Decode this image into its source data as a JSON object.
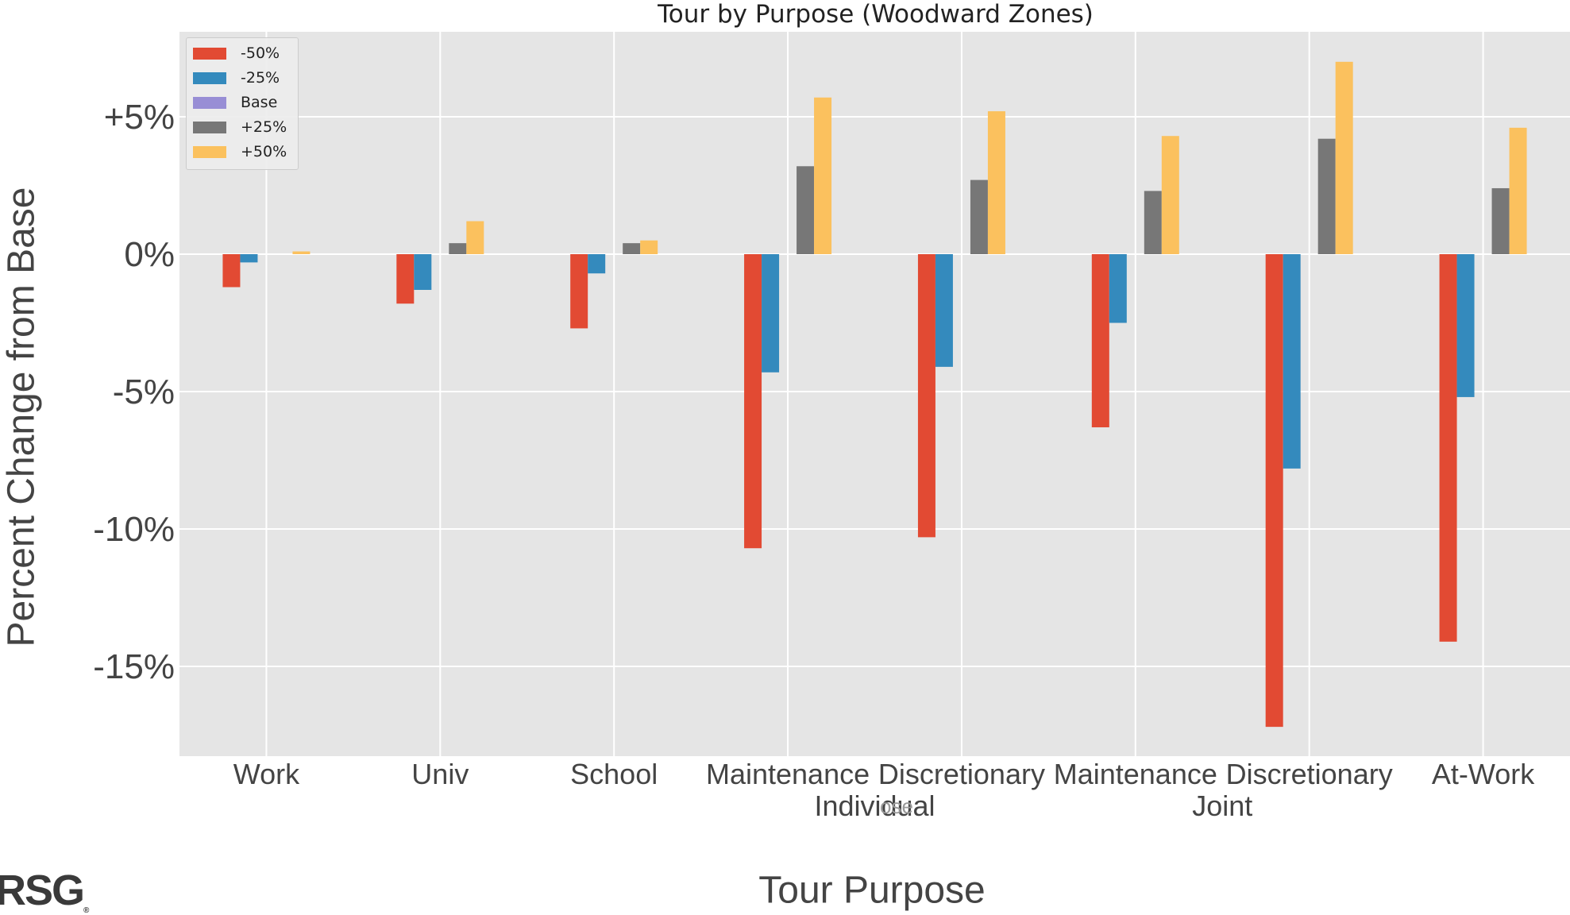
{
  "chart_data": {
    "type": "bar",
    "title": "Tour by Purpose (Woodward Zones)",
    "xlabel": "Tour Purpose",
    "ylabel": "Percent Change from Base",
    "ylim": [
      -18.4,
      8.2
    ],
    "yticks": [
      5,
      0,
      -5,
      -10,
      -15
    ],
    "ytick_labels": [
      "+5%",
      "0%",
      "-5%",
      "-10%",
      "-15%"
    ],
    "grid": true,
    "legend_position": "top-left",
    "categories": [
      "Work",
      "Univ",
      "School",
      "Maintenance",
      "Discretionary",
      "Maintenance",
      "Discretionary",
      "At-Work"
    ],
    "category_groups": [
      {
        "label": "Individual",
        "categories": [
          3,
          4
        ]
      },
      {
        "label": "Joint",
        "categories": [
          5,
          6
        ]
      }
    ],
    "stray_label": "ose",
    "series": [
      {
        "name": "-50%",
        "color": "#e24a33",
        "values": [
          -1.2,
          -1.8,
          -2.7,
          -10.7,
          -10.3,
          -6.3,
          -17.2,
          -14.1
        ]
      },
      {
        "name": "-25%",
        "color": "#348abd",
        "values": [
          -0.3,
          -1.3,
          -0.7,
          -4.3,
          -4.1,
          -2.5,
          -7.8,
          -5.2
        ]
      },
      {
        "name": "Base",
        "color": "#988ed5",
        "values": [
          0,
          0,
          0,
          0,
          0,
          0,
          0,
          0
        ]
      },
      {
        "name": "+25%",
        "color": "#777777",
        "values": [
          0,
          0.4,
          0.4,
          3.2,
          2.7,
          2.3,
          4.2,
          2.4
        ]
      },
      {
        "name": "+50%",
        "color": "#fbc15e",
        "values": [
          0.1,
          1.2,
          0.5,
          5.7,
          5.2,
          4.3,
          7.0,
          4.6
        ]
      }
    ]
  },
  "logo": {
    "text": "RSG",
    "mark": "®"
  }
}
